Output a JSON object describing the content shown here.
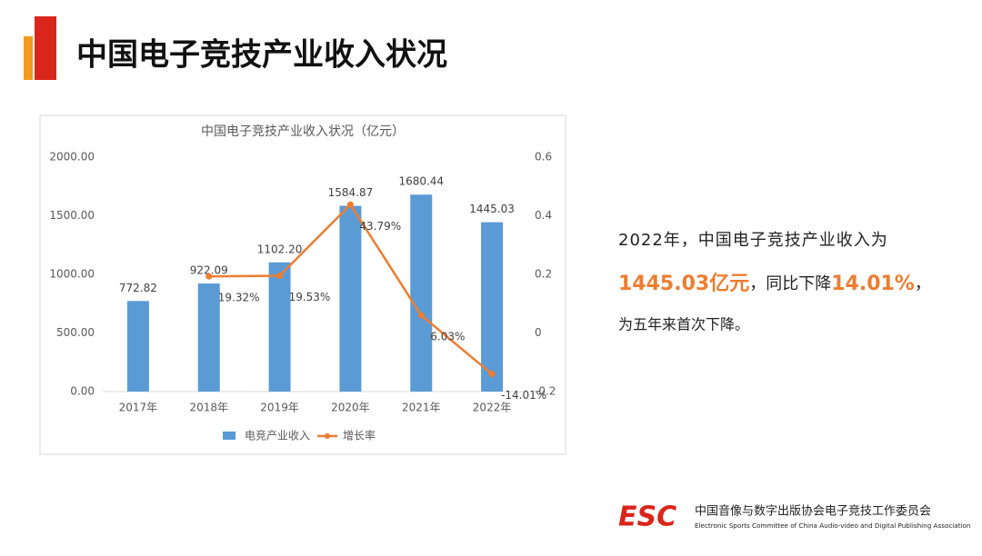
{
  "header": {
    "title": "中国电子竞技产业收入状况"
  },
  "chart_data": {
    "type": "bar",
    "title": "中国电子竞技产业收入状况（亿元）",
    "categories": [
      "2017年",
      "2018年",
      "2019年",
      "2020年",
      "2021年",
      "2022年"
    ],
    "series": [
      {
        "name": "电竞产业收入",
        "type": "bar",
        "color": "#5b9bd5",
        "values": [
          772.82,
          922.09,
          1102.2,
          1584.87,
          1680.44,
          1445.03
        ],
        "value_labels": [
          "772.82",
          "922.09",
          "1102.20",
          "1584.87",
          "1680.44",
          "1445.03"
        ]
      },
      {
        "name": "增长率",
        "type": "line",
        "axis": "y2",
        "color": "#ed7d31",
        "values": [
          null,
          0.1932,
          0.1953,
          0.4379,
          0.0603,
          -0.1401
        ],
        "value_labels": [
          null,
          "19.32%",
          "19.53%",
          "43.79%",
          "6.03%",
          "-14.01%"
        ]
      }
    ],
    "ylim": [
      0,
      2000
    ],
    "yticks": [
      {
        "value": 0,
        "label": "0.00"
      },
      {
        "value": 500,
        "label": "500.00"
      },
      {
        "value": 1000,
        "label": "1000.00"
      },
      {
        "value": 1500,
        "label": "1500.00"
      },
      {
        "value": 2000,
        "label": "2000.00"
      }
    ],
    "y2lim": [
      -0.2,
      0.6
    ],
    "y2ticks": [
      -0.2,
      0,
      0.2,
      0.4,
      0.6
    ],
    "grid": false,
    "legend": "bottom"
  },
  "summary": {
    "line1": "2022年，中国电子竞技产业收入为",
    "line2": [
      {
        "text": "1445.03亿元",
        "highlight": true
      },
      {
        "text": "，同比下降",
        "highlight": false
      },
      {
        "text": "14.01%",
        "highlight": true
      },
      {
        "text": "，",
        "highlight": false
      }
    ],
    "line3": "为五年来首次下降。"
  },
  "footer": {
    "logo": "ESC",
    "org_cn": "中国音像与数字出版协会电子竞技工作委员会",
    "org_en": "Electronic Sports Committee of China Audio-video and Digital Publishing Association"
  }
}
